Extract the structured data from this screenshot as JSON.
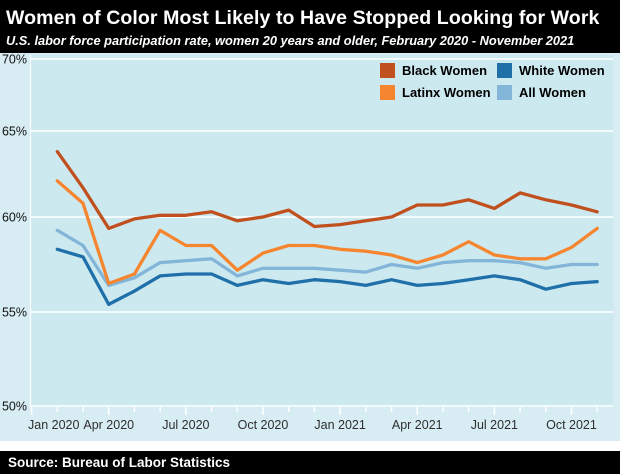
{
  "header": {
    "title": "Women of Color Most Likely to Have Stopped Looking for Work",
    "subtitle": "U.S. labor force participation rate, women 20 years and older, February 2020 - November 2021"
  },
  "footer": {
    "source": "Source: Bureau of Labor Statistics"
  },
  "legend": {
    "items": [
      {
        "label": "Black Women",
        "color": "#c0511f"
      },
      {
        "label": "White Women",
        "color": "#1f6fa8"
      },
      {
        "label": "Latinx Women",
        "color": "#f5862f"
      },
      {
        "label": "All Women",
        "color": "#83b5d9"
      }
    ]
  },
  "chart_data": {
    "type": "line",
    "title": "Women of Color Most Likely to Have Stopped Looking for Work",
    "subtitle": "U.S. labor force participation rate, women 20 years and older, February 2020 - November 2021",
    "unit": "percent",
    "x": [
      "Feb 2020",
      "Mar 2020",
      "Apr 2020",
      "May 2020",
      "Jun 2020",
      "Jul 2020",
      "Aug 2020",
      "Sep 2020",
      "Oct 2020",
      "Nov 2020",
      "Dec 2020",
      "Jan 2021",
      "Feb 2021",
      "Mar 2021",
      "Apr 2021",
      "May 2021",
      "Jun 2021",
      "Jul 2021",
      "Aug 2021",
      "Sep 2021",
      "Oct 2021",
      "Nov 2021"
    ],
    "x_axis_tick_labels": [
      "Jan 2020",
      "Apr 2020",
      "Jul 2020",
      "Oct 2020",
      "Jan 2021",
      "Apr 2021",
      "Jul 2021",
      "Oct 2021"
    ],
    "y_axis_tick_labels": [
      "70%",
      "65%",
      "60%",
      "55%",
      "50%"
    ],
    "y_axis_tick_values": [
      70,
      65,
      60,
      55,
      50
    ],
    "ylim": [
      50,
      70
    ],
    "grid": true,
    "legend_position": "top-right",
    "series": [
      {
        "name": "Black Women",
        "color": "#c0511f",
        "values": [
          63.8,
          61.7,
          59.4,
          59.9,
          60.1,
          60.1,
          60.3,
          59.8,
          60.0,
          60.4,
          59.5,
          59.6,
          59.8,
          60.0,
          60.7,
          60.7,
          61.0,
          60.5,
          61.4,
          61.0,
          60.7,
          60.3
        ]
      },
      {
        "name": "Latinx Women",
        "color": "#f5862f",
        "values": [
          62.1,
          60.8,
          56.5,
          57.0,
          59.3,
          58.5,
          58.5,
          57.2,
          58.1,
          58.5,
          58.5,
          58.3,
          58.2,
          58.0,
          57.6,
          58.0,
          58.7,
          58.0,
          57.8,
          57.8,
          58.4,
          59.4
        ]
      },
      {
        "name": "White Women",
        "color": "#1f6fa8",
        "values": [
          58.3,
          57.9,
          55.4,
          56.1,
          56.9,
          57.0,
          57.0,
          56.4,
          56.7,
          56.5,
          56.7,
          56.6,
          56.4,
          56.7,
          56.4,
          56.5,
          56.7,
          56.9,
          56.7,
          56.2,
          56.5,
          56.6
        ]
      },
      {
        "name": "All Women",
        "color": "#83b5d9",
        "values": [
          59.3,
          58.5,
          56.4,
          56.8,
          57.6,
          57.7,
          57.8,
          56.9,
          57.3,
          57.3,
          57.3,
          57.2,
          57.1,
          57.5,
          57.3,
          57.6,
          57.7,
          57.7,
          57.6,
          57.3,
          57.5,
          57.5
        ]
      }
    ]
  }
}
